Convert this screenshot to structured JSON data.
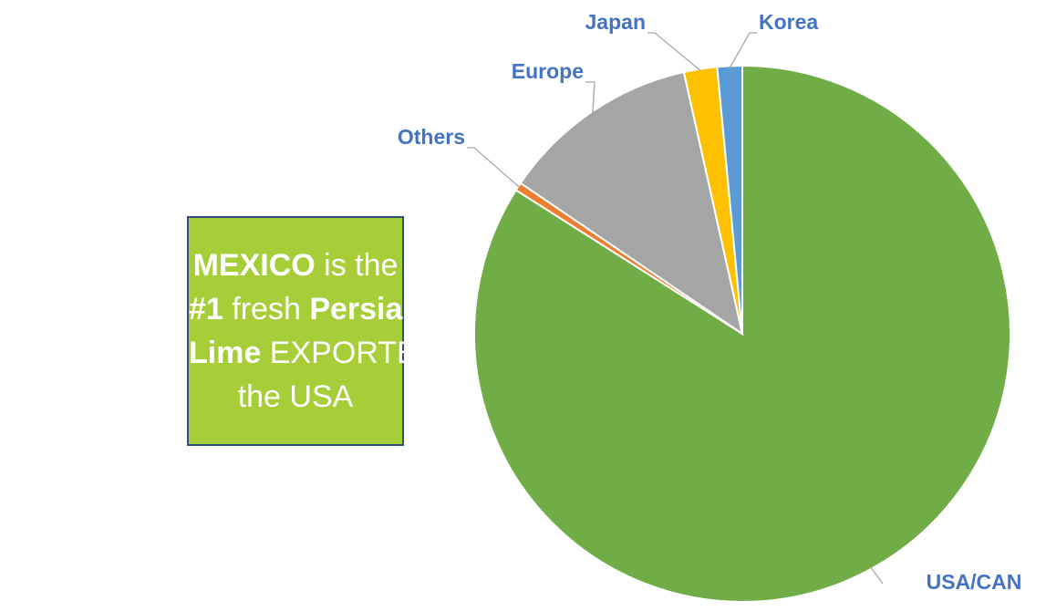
{
  "chart_data": {
    "type": "pie",
    "categories": [
      "USA/CAN",
      "Others",
      "Europe",
      "Japan",
      "Korea"
    ],
    "values": [
      84,
      0.5,
      12,
      2,
      1.5
    ],
    "colors": [
      "#70ad47",
      "#ed7d31",
      "#a5a5a5",
      "#ffc000",
      "#5b9bd5"
    ],
    "annotation": [
      [
        {
          "text": "MEXICO",
          "bold": true
        },
        {
          "text": " is the",
          "bold": false
        }
      ],
      [
        {
          "text": "#1",
          "bold": true
        },
        {
          "text": " fresh ",
          "bold": false
        },
        {
          "text": "Persian",
          "bold": true
        }
      ],
      [
        {
          "text": "Lime",
          "bold": true
        },
        {
          "text": " EXPORTER to",
          "bold": false
        }
      ],
      [
        {
          "text": "the USA",
          "bold": false
        }
      ]
    ]
  }
}
